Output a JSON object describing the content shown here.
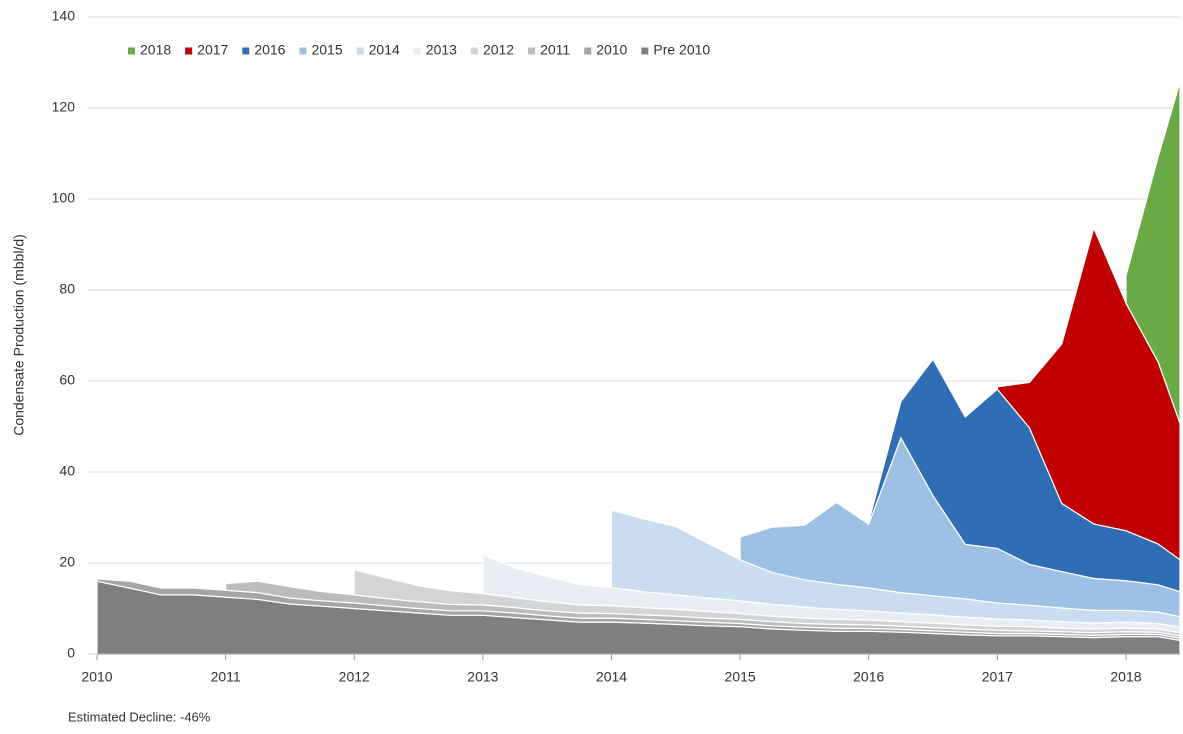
{
  "chart_data": {
    "type": "stacked_area",
    "y_label": "Condensate Production (mbbl/d)",
    "annotation": "Estimated Decline: -46%",
    "x": [
      2010,
      2010.25,
      2010.5,
      2010.75,
      2011,
      2011.25,
      2011.5,
      2011.75,
      2012,
      2012.25,
      2012.5,
      2012.75,
      2013,
      2013.25,
      2013.5,
      2013.75,
      2014,
      2014.25,
      2014.5,
      2014.75,
      2015,
      2015.25,
      2015.5,
      2015.75,
      2016,
      2016.25,
      2016.5,
      2016.75,
      2017,
      2017.25,
      2017.5,
      2017.75,
      2018,
      2018.25,
      2018.42
    ],
    "xlim": [
      2010,
      2018.42
    ],
    "xticks": [
      2010,
      2011,
      2012,
      2013,
      2014,
      2015,
      2016,
      2017,
      2018
    ],
    "ylim": [
      0,
      140
    ],
    "yticks": [
      0,
      20,
      40,
      60,
      80,
      100,
      120,
      140
    ],
    "grid": true,
    "legend": "top-left",
    "series": [
      {
        "name": "Pre 2010",
        "color": "#7f7f7f",
        "values": [
          16,
          14.5,
          13,
          13,
          12.5,
          12,
          11,
          10.5,
          10,
          9.5,
          9,
          8.5,
          8.5,
          8,
          7.5,
          7,
          7,
          6.8,
          6.5,
          6.2,
          6,
          5.5,
          5.2,
          5,
          5,
          4.8,
          4.5,
          4.2,
          4,
          4,
          3.8,
          3.6,
          3.8,
          3.8,
          3
        ]
      },
      {
        "name": "2010",
        "color": "#a5a5a5",
        "values": [
          0.5,
          1.5,
          1.5,
          1.5,
          1.5,
          1.5,
          1.3,
          1.2,
          1.2,
          1.1,
          1,
          1,
          1,
          1,
          0.9,
          0.9,
          0.9,
          0.8,
          0.8,
          0.8,
          0.7,
          0.7,
          0.7,
          0.7,
          0.6,
          0.6,
          0.6,
          0.6,
          0.5,
          0.5,
          0.5,
          0.5,
          0.5,
          0.5,
          0.5
        ]
      },
      {
        "name": "2011",
        "color": "#bcbcbc",
        "values": [
          null,
          null,
          null,
          null,
          1.5,
          2.5,
          2.5,
          2,
          1.8,
          1.6,
          1.5,
          1.4,
          1.3,
          1.2,
          1.1,
          1.1,
          1,
          1,
          1,
          0.9,
          0.9,
          0.9,
          0.8,
          0.8,
          0.8,
          0.7,
          0.7,
          0.7,
          0.7,
          0.6,
          0.6,
          0.6,
          0.6,
          0.5,
          0.5
        ]
      },
      {
        "name": "2012",
        "color": "#d4d4d4",
        "values": [
          null,
          null,
          null,
          null,
          null,
          null,
          null,
          null,
          5.5,
          4.5,
          3.5,
          3,
          2.5,
          2.2,
          2,
          1.8,
          1.7,
          1.6,
          1.5,
          1.4,
          1.3,
          1.2,
          1.2,
          1.1,
          1.1,
          1,
          1,
          0.9,
          0.9,
          0.9,
          0.8,
          0.8,
          0.8,
          0.7,
          0.7
        ]
      },
      {
        "name": "2013",
        "color": "#e9edf3",
        "values": [
          null,
          null,
          null,
          null,
          null,
          null,
          null,
          null,
          null,
          null,
          null,
          null,
          8.5,
          6.5,
          5.5,
          4.5,
          4,
          3.5,
          3.2,
          3,
          2.8,
          2.6,
          2.4,
          2.2,
          2,
          1.9,
          1.8,
          1.7,
          1.6,
          1.5,
          1.4,
          1.3,
          1.3,
          1.2,
          1.2
        ]
      },
      {
        "name": "2014",
        "color": "#c9dcf0",
        "values": [
          null,
          null,
          null,
          null,
          null,
          null,
          null,
          null,
          null,
          null,
          null,
          null,
          null,
          null,
          null,
          null,
          17,
          16,
          15,
          12,
          9,
          7,
          6,
          5.5,
          5,
          4.5,
          4.2,
          4,
          3.5,
          3.2,
          3,
          2.8,
          2.6,
          2.5,
          2.3
        ]
      },
      {
        "name": "2015",
        "color": "#9dc1e4",
        "values": [
          null,
          null,
          null,
          null,
          null,
          null,
          null,
          null,
          null,
          null,
          null,
          null,
          null,
          null,
          null,
          null,
          null,
          null,
          null,
          null,
          5,
          10,
          12,
          18,
          14,
          34,
          22,
          12,
          12,
          9,
          8,
          7,
          6.5,
          6,
          5.5
        ]
      },
      {
        "name": "2016",
        "color": "#2f6db5",
        "values": [
          null,
          null,
          null,
          null,
          null,
          null,
          null,
          null,
          null,
          null,
          null,
          null,
          null,
          null,
          null,
          null,
          null,
          null,
          null,
          null,
          null,
          null,
          null,
          null,
          0.5,
          8,
          30,
          28,
          35,
          30,
          15,
          12,
          11,
          9,
          7
        ]
      },
      {
        "name": "2017",
        "color": "#c00000",
        "values": [
          null,
          null,
          null,
          null,
          null,
          null,
          null,
          null,
          null,
          null,
          null,
          null,
          null,
          null,
          null,
          null,
          null,
          null,
          null,
          null,
          null,
          null,
          null,
          null,
          null,
          null,
          null,
          null,
          0.5,
          10,
          35,
          65,
          50,
          40,
          30
        ]
      },
      {
        "name": "2018",
        "color": "#6aaa46",
        "values": [
          null,
          null,
          null,
          null,
          null,
          null,
          null,
          null,
          null,
          null,
          null,
          null,
          null,
          null,
          null,
          null,
          null,
          null,
          null,
          null,
          null,
          null,
          null,
          null,
          null,
          null,
          null,
          null,
          null,
          null,
          null,
          null,
          6,
          45,
          75
        ]
      }
    ]
  }
}
